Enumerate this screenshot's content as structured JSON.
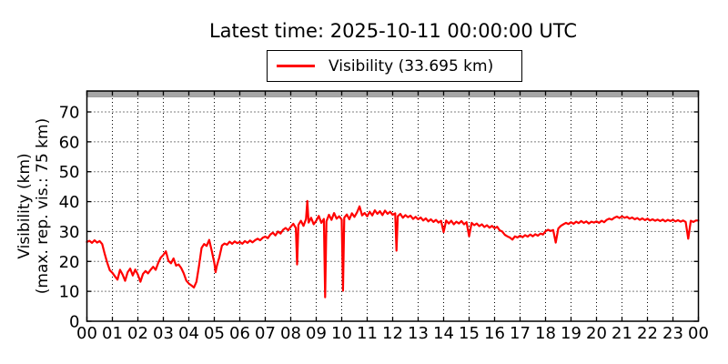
{
  "title": "Latest time: 2025-10-11 00:00:00 UTC",
  "legend": {
    "label": "Visibility (33.695 km)",
    "line_color": "#ff0000"
  },
  "y_axis": {
    "label_line1": "Visibility (km)",
    "label_line2": "(max. rep. vis.: 75 km)",
    "ticks": [
      0,
      10,
      20,
      30,
      40,
      50,
      60,
      70
    ]
  },
  "x_axis": {
    "ticks": [
      "00",
      "01",
      "02",
      "03",
      "04",
      "05",
      "06",
      "07",
      "08",
      "09",
      "10",
      "11",
      "12",
      "13",
      "14",
      "15",
      "16",
      "17",
      "18",
      "19",
      "20",
      "21",
      "22",
      "23",
      "00"
    ]
  },
  "colors": {
    "series": "#ff0000",
    "band": "#a6a6a6",
    "band_edge": "#8c8c8c",
    "grid": "#000000",
    "axis": "#000000",
    "background": "#ffffff",
    "text": "#000000"
  },
  "chart_data": {
    "type": "line",
    "title": "Latest time: 2025-10-11 00:00:00 UTC",
    "series_name": "Visibility",
    "latest_value_km": 33.695,
    "ylabel": "Visibility (km) (max. rep. vis.: 75 km)",
    "x_unit": "hour of day (UTC)",
    "y_unit": "km",
    "xlim": [
      0,
      24
    ],
    "ylim": [
      0,
      77
    ],
    "grid": true,
    "max_reported_visibility_km": 75,
    "shaded_band_km": [
      75,
      77
    ],
    "points": [
      [
        0.0,
        26.5
      ],
      [
        0.1,
        26.9
      ],
      [
        0.2,
        26.2
      ],
      [
        0.3,
        27.1
      ],
      [
        0.4,
        26.3
      ],
      [
        0.5,
        26.8
      ],
      [
        0.6,
        25.8
      ],
      [
        0.7,
        22.5
      ],
      [
        0.8,
        19.5
      ],
      [
        0.9,
        17.0
      ],
      [
        1.0,
        16.2
      ],
      [
        1.1,
        15.0
      ],
      [
        1.2,
        13.9
      ],
      [
        1.3,
        17.2
      ],
      [
        1.4,
        15.6
      ],
      [
        1.5,
        13.5
      ],
      [
        1.6,
        16.4
      ],
      [
        1.7,
        17.6
      ],
      [
        1.8,
        15.3
      ],
      [
        1.9,
        17.3
      ],
      [
        2.0,
        15.6
      ],
      [
        2.1,
        13.2
      ],
      [
        2.2,
        15.8
      ],
      [
        2.3,
        16.8
      ],
      [
        2.4,
        16.0
      ],
      [
        2.5,
        17.2
      ],
      [
        2.6,
        18.2
      ],
      [
        2.7,
        17.2
      ],
      [
        2.8,
        19.5
      ],
      [
        2.9,
        21.3
      ],
      [
        3.0,
        22.2
      ],
      [
        3.1,
        23.4
      ],
      [
        3.2,
        20.2
      ],
      [
        3.3,
        19.4
      ],
      [
        3.4,
        21.0
      ],
      [
        3.5,
        18.6
      ],
      [
        3.6,
        19.0
      ],
      [
        3.7,
        17.8
      ],
      [
        3.8,
        16.0
      ],
      [
        3.9,
        13.6
      ],
      [
        4.0,
        12.6
      ],
      [
        4.1,
        12.0
      ],
      [
        4.2,
        11.3
      ],
      [
        4.3,
        13.2
      ],
      [
        4.4,
        18.5
      ],
      [
        4.5,
        24.5
      ],
      [
        4.6,
        25.8
      ],
      [
        4.7,
        25.2
      ],
      [
        4.8,
        27.2
      ],
      [
        4.9,
        23.5
      ],
      [
        5.0,
        19.5
      ],
      [
        5.05,
        16.4
      ],
      [
        5.1,
        18.5
      ],
      [
        5.2,
        21.5
      ],
      [
        5.3,
        25.3
      ],
      [
        5.4,
        26.0
      ],
      [
        5.5,
        25.6
      ],
      [
        5.6,
        26.6
      ],
      [
        5.7,
        25.9
      ],
      [
        5.8,
        26.7
      ],
      [
        5.9,
        26.1
      ],
      [
        6.0,
        26.5
      ],
      [
        6.1,
        25.9
      ],
      [
        6.2,
        26.8
      ],
      [
        6.3,
        26.2
      ],
      [
        6.4,
        27.0
      ],
      [
        6.5,
        26.4
      ],
      [
        6.6,
        27.1
      ],
      [
        6.7,
        27.6
      ],
      [
        6.8,
        27.1
      ],
      [
        6.9,
        27.9
      ],
      [
        7.0,
        28.3
      ],
      [
        7.1,
        27.8
      ],
      [
        7.2,
        29.0
      ],
      [
        7.3,
        29.6
      ],
      [
        7.4,
        28.7
      ],
      [
        7.5,
        30.0
      ],
      [
        7.6,
        29.3
      ],
      [
        7.7,
        30.6
      ],
      [
        7.8,
        31.2
      ],
      [
        7.9,
        30.4
      ],
      [
        8.0,
        31.6
      ],
      [
        8.1,
        32.6
      ],
      [
        8.2,
        31.2
      ],
      [
        8.25,
        19.0
      ],
      [
        8.3,
        32.2
      ],
      [
        8.4,
        33.6
      ],
      [
        8.5,
        31.9
      ],
      [
        8.6,
        34.2
      ],
      [
        8.65,
        40.2
      ],
      [
        8.7,
        33.0
      ],
      [
        8.8,
        34.6
      ],
      [
        8.9,
        32.4
      ],
      [
        9.0,
        33.6
      ],
      [
        9.1,
        35.2
      ],
      [
        9.2,
        32.9
      ],
      [
        9.3,
        34.2
      ],
      [
        9.35,
        8.0
      ],
      [
        9.4,
        33.4
      ],
      [
        9.5,
        35.6
      ],
      [
        9.6,
        33.9
      ],
      [
        9.7,
        36.2
      ],
      [
        9.8,
        34.3
      ],
      [
        9.9,
        35.1
      ],
      [
        10.0,
        34.0
      ],
      [
        10.05,
        10.2
      ],
      [
        10.1,
        34.6
      ],
      [
        10.2,
        35.7
      ],
      [
        10.3,
        34.1
      ],
      [
        10.4,
        36.1
      ],
      [
        10.5,
        34.9
      ],
      [
        10.6,
        36.4
      ],
      [
        10.7,
        38.4
      ],
      [
        10.8,
        35.4
      ],
      [
        10.9,
        36.2
      ],
      [
        11.0,
        35.1
      ],
      [
        11.1,
        36.6
      ],
      [
        11.2,
        35.4
      ],
      [
        11.3,
        37.1
      ],
      [
        11.4,
        35.9
      ],
      [
        11.5,
        36.8
      ],
      [
        11.6,
        35.5
      ],
      [
        11.7,
        37.0
      ],
      [
        11.8,
        35.9
      ],
      [
        11.9,
        36.6
      ],
      [
        12.0,
        35.6
      ],
      [
        12.1,
        36.1
      ],
      [
        12.15,
        23.6
      ],
      [
        12.2,
        35.1
      ],
      [
        12.3,
        35.9
      ],
      [
        12.4,
        34.6
      ],
      [
        12.5,
        35.5
      ],
      [
        12.6,
        34.8
      ],
      [
        12.7,
        35.3
      ],
      [
        12.8,
        34.2
      ],
      [
        12.9,
        34.9
      ],
      [
        13.0,
        34.1
      ],
      [
        13.1,
        34.7
      ],
      [
        13.2,
        33.7
      ],
      [
        13.3,
        34.4
      ],
      [
        13.4,
        33.4
      ],
      [
        13.5,
        34.1
      ],
      [
        13.6,
        33.2
      ],
      [
        13.7,
        33.9
      ],
      [
        13.8,
        33.0
      ],
      [
        13.9,
        33.6
      ],
      [
        14.0,
        29.8
      ],
      [
        14.1,
        33.7
      ],
      [
        14.2,
        32.7
      ],
      [
        14.3,
        33.6
      ],
      [
        14.4,
        32.4
      ],
      [
        14.5,
        33.3
      ],
      [
        14.6,
        32.7
      ],
      [
        14.7,
        33.5
      ],
      [
        14.8,
        32.4
      ],
      [
        14.9,
        33.1
      ],
      [
        15.0,
        28.4
      ],
      [
        15.1,
        32.9
      ],
      [
        15.2,
        32.1
      ],
      [
        15.3,
        32.7
      ],
      [
        15.4,
        31.8
      ],
      [
        15.5,
        32.4
      ],
      [
        15.6,
        31.5
      ],
      [
        15.7,
        32.1
      ],
      [
        15.8,
        31.3
      ],
      [
        15.9,
        31.9
      ],
      [
        16.0,
        31.1
      ],
      [
        16.1,
        31.6
      ],
      [
        16.2,
        30.4
      ],
      [
        16.3,
        30.0
      ],
      [
        16.4,
        28.9
      ],
      [
        16.5,
        28.4
      ],
      [
        16.6,
        28.0
      ],
      [
        16.7,
        27.3
      ],
      [
        16.8,
        28.4
      ],
      [
        16.9,
        28.0
      ],
      [
        17.0,
        28.6
      ],
      [
        17.1,
        28.1
      ],
      [
        17.2,
        28.8
      ],
      [
        17.3,
        28.3
      ],
      [
        17.4,
        29.0
      ],
      [
        17.5,
        28.4
      ],
      [
        17.6,
        29.1
      ],
      [
        17.7,
        28.6
      ],
      [
        17.8,
        29.3
      ],
      [
        17.9,
        29.0
      ],
      [
        18.0,
        30.1
      ],
      [
        18.1,
        30.6
      ],
      [
        18.2,
        30.2
      ],
      [
        18.3,
        30.5
      ],
      [
        18.4,
        26.3
      ],
      [
        18.5,
        31.0
      ],
      [
        18.6,
        31.9
      ],
      [
        18.7,
        32.4
      ],
      [
        18.8,
        32.9
      ],
      [
        18.9,
        32.5
      ],
      [
        19.0,
        33.1
      ],
      [
        19.1,
        32.6
      ],
      [
        19.2,
        33.3
      ],
      [
        19.3,
        32.8
      ],
      [
        19.4,
        33.5
      ],
      [
        19.5,
        32.9
      ],
      [
        19.6,
        33.4
      ],
      [
        19.7,
        32.7
      ],
      [
        19.8,
        33.3
      ],
      [
        19.9,
        33.0
      ],
      [
        20.0,
        33.4
      ],
      [
        20.1,
        32.9
      ],
      [
        20.2,
        33.6
      ],
      [
        20.3,
        33.1
      ],
      [
        20.4,
        33.9
      ],
      [
        20.5,
        34.3
      ],
      [
        20.6,
        34.0
      ],
      [
        20.7,
        34.6
      ],
      [
        20.8,
        35.0
      ],
      [
        20.9,
        34.5
      ],
      [
        21.0,
        35.1
      ],
      [
        21.1,
        34.6
      ],
      [
        21.2,
        34.9
      ],
      [
        21.3,
        34.3
      ],
      [
        21.4,
        34.7
      ],
      [
        21.5,
        34.1
      ],
      [
        21.6,
        34.5
      ],
      [
        21.7,
        33.9
      ],
      [
        21.8,
        34.4
      ],
      [
        21.9,
        33.8
      ],
      [
        22.0,
        34.3
      ],
      [
        22.1,
        33.7
      ],
      [
        22.2,
        34.1
      ],
      [
        22.3,
        33.6
      ],
      [
        22.4,
        34.0
      ],
      [
        22.5,
        33.5
      ],
      [
        22.6,
        34.0
      ],
      [
        22.7,
        33.4
      ],
      [
        22.8,
        33.9
      ],
      [
        22.9,
        33.5
      ],
      [
        23.0,
        33.9
      ],
      [
        23.1,
        33.4
      ],
      [
        23.2,
        33.8
      ],
      [
        23.3,
        33.3
      ],
      [
        23.4,
        33.7
      ],
      [
        23.5,
        33.2
      ],
      [
        23.6,
        27.6
      ],
      [
        23.7,
        33.6
      ],
      [
        23.8,
        33.2
      ],
      [
        23.9,
        33.7
      ],
      [
        24.0,
        33.695
      ]
    ]
  }
}
